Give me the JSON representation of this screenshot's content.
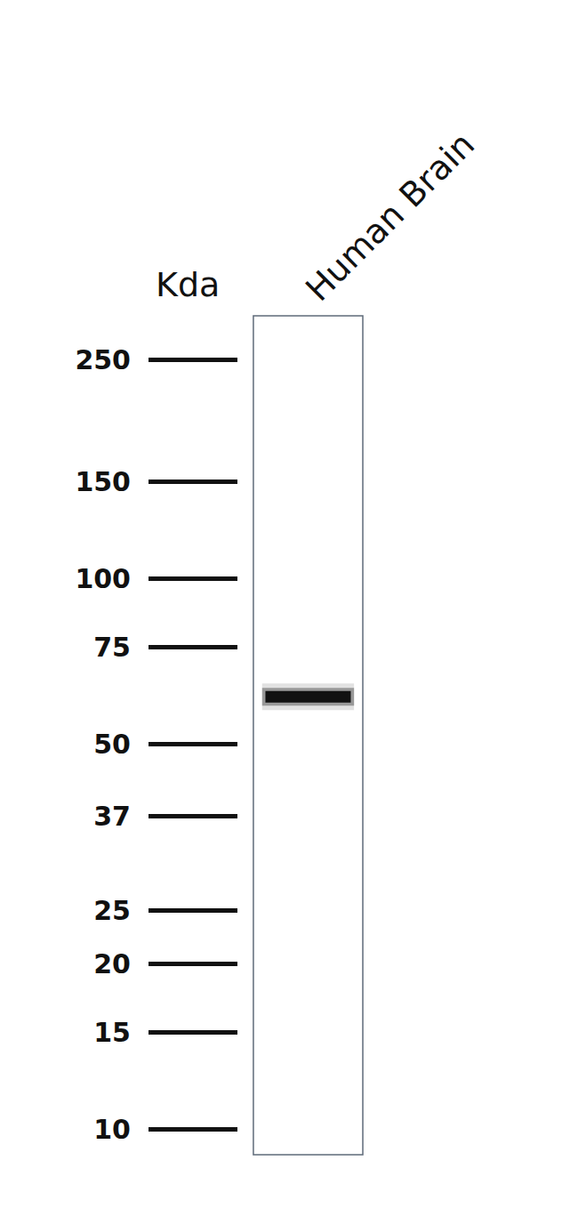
{
  "chart_data": {
    "type": "western_blot",
    "categories": [
      "Human Brain"
    ],
    "values": [
      61
    ],
    "ylabel": "Kda",
    "ylim": [
      9,
      300
    ],
    "yticks": [
      250,
      150,
      100,
      75,
      50,
      37,
      25,
      20,
      15,
      10
    ],
    "log": "y",
    "grid": false,
    "color": "#111111"
  }
}
